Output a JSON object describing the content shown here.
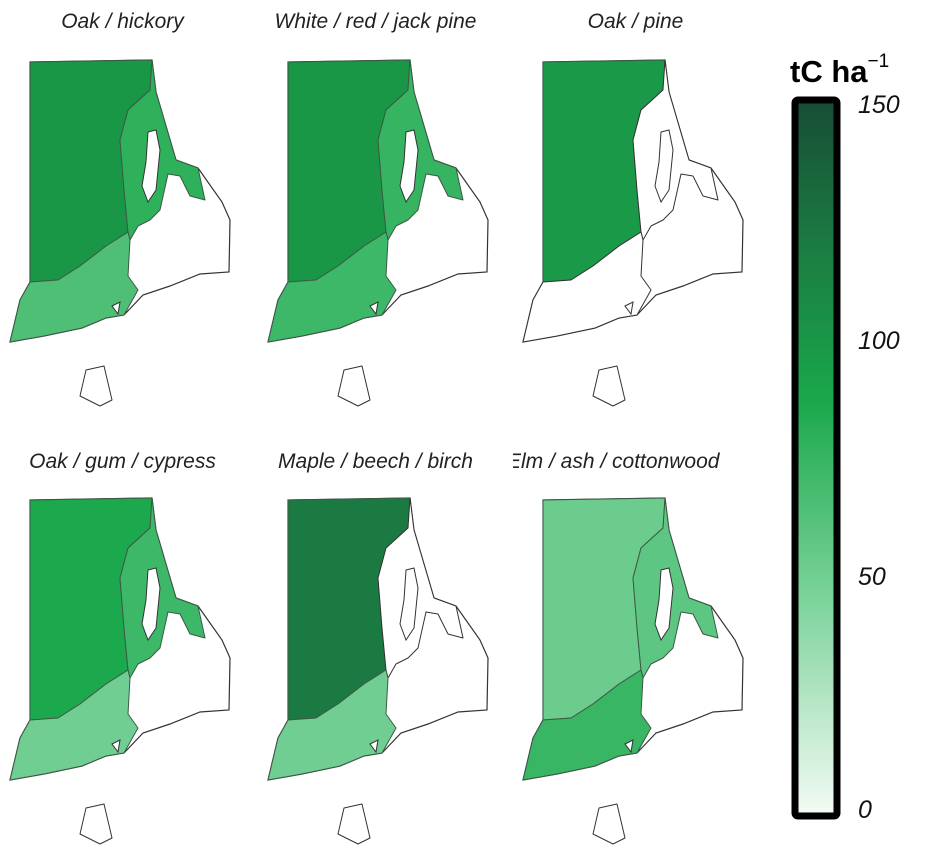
{
  "chart_data": {
    "type": "heatmap",
    "colorbar": {
      "title": "tC ha",
      "title_exponent": "−1",
      "range": [
        0,
        150
      ],
      "ticks": [
        "150",
        "100",
        "50",
        "0"
      ],
      "tick_values": [
        150,
        100,
        50,
        0
      ]
    },
    "panels": [
      {
        "title": "Oak / hickory",
        "values": {
          "west": 100,
          "east_bay": 78,
          "south_coast": 65,
          "block_island": null
        }
      },
      {
        "title": "White / red / jack pine",
        "values": {
          "west": 100,
          "east_bay": 75,
          "south_coast": 72,
          "block_island": null
        }
      },
      {
        "title": "Oak / pine",
        "values": {
          "west": 98,
          "east_bay": null,
          "south_coast": null,
          "block_island": null
        }
      },
      {
        "title": "Oak / gum / cypress",
        "values": {
          "west": 86,
          "east_bay": 72,
          "south_coast": 50,
          "block_island": null
        }
      },
      {
        "title": "Maple / beech / birch",
        "values": {
          "west": 120,
          "east_bay": null,
          "south_coast": 50,
          "block_island": null
        }
      },
      {
        "title": "Elm / ash / cottonwood",
        "values": {
          "west": 52,
          "east_bay": 58,
          "south_coast": 74,
          "block_island": null
        }
      }
    ]
  }
}
